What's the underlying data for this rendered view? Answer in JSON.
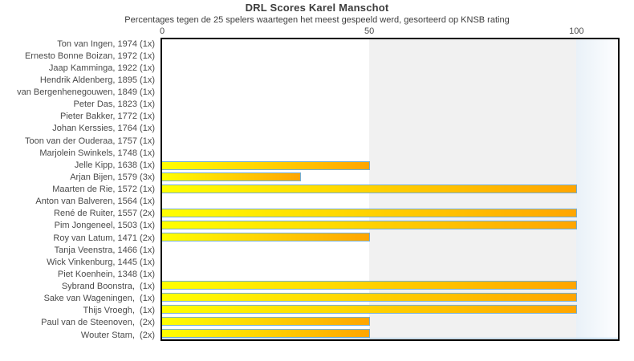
{
  "chart_data": {
    "type": "bar",
    "orientation": "horizontal",
    "title": "DRL Scores Karel Manschot",
    "subtitle": "Percentages tegen de 25 spelers waartegen het meest gespeeld werd, gesorteerd op KNSB rating",
    "categories": [
      "Ton van Ingen, 1974 (1x)",
      "Ernesto Bonne Boizan, 1972 (1x)",
      "Jaap Kamminga, 1922 (1x)",
      "Hendrik Aldenberg, 1895 (1x)",
      "van Bergenhenegouwen, 1849 (1x)",
      "Peter Das, 1823 (1x)",
      "Pieter Bakker, 1772 (1x)",
      "Johan Kerssies, 1764 (1x)",
      "Toon van der Ouderaa, 1757 (1x)",
      "Marjolein Swinkels, 1748 (1x)",
      "Jelle Kipp, 1638 (1x)",
      "Arjan Bijen, 1579 (3x)",
      "Maarten de Rie, 1572 (1x)",
      "Anton van Balveren, 1564 (1x)",
      "René de Ruiter, 1557 (2x)",
      "Pim Jongeneel, 1503 (1x)",
      "Roy van Latum, 1471 (2x)",
      "Tanja Veenstra, 1466 (1x)",
      "Wick Vinkenburg, 1445 (1x)",
      "Piet Koenhein, 1348 (1x)",
      "Sybrand Boonstra,  (1x)",
      "Sake van Wageningen,  (1x)",
      "Thijs Vroegh,  (1x)",
      "Paul van de Steenoven,  (2x)",
      "Wouter Stam,  (2x)"
    ],
    "values": [
      0,
      0,
      0,
      0,
      0,
      0,
      0,
      0,
      0,
      0,
      50,
      33.3,
      100,
      0,
      100,
      100,
      50,
      0,
      0,
      0,
      100,
      100,
      100,
      50,
      50
    ],
    "xlabel": "",
    "ylabel": "",
    "x_ticks": [
      0,
      50,
      100
    ],
    "xlim": [
      0,
      110
    ],
    "axis_position": "top",
    "grid": false,
    "legend": "none",
    "bands": [
      {
        "from": 50,
        "to": 100,
        "color": "#f1f1f1"
      },
      {
        "from": 100,
        "to": 110,
        "color_start": "#e9f1f8",
        "color_end": "#fdfeff"
      }
    ],
    "colors": {
      "bar_gradient_start": "#ffff00",
      "bar_gradient_end": "#ffa500",
      "bar_border": "#73aed6",
      "text": "#4a4a4a",
      "plot_border": "#000000",
      "baseline": "#a9cbe4"
    }
  }
}
